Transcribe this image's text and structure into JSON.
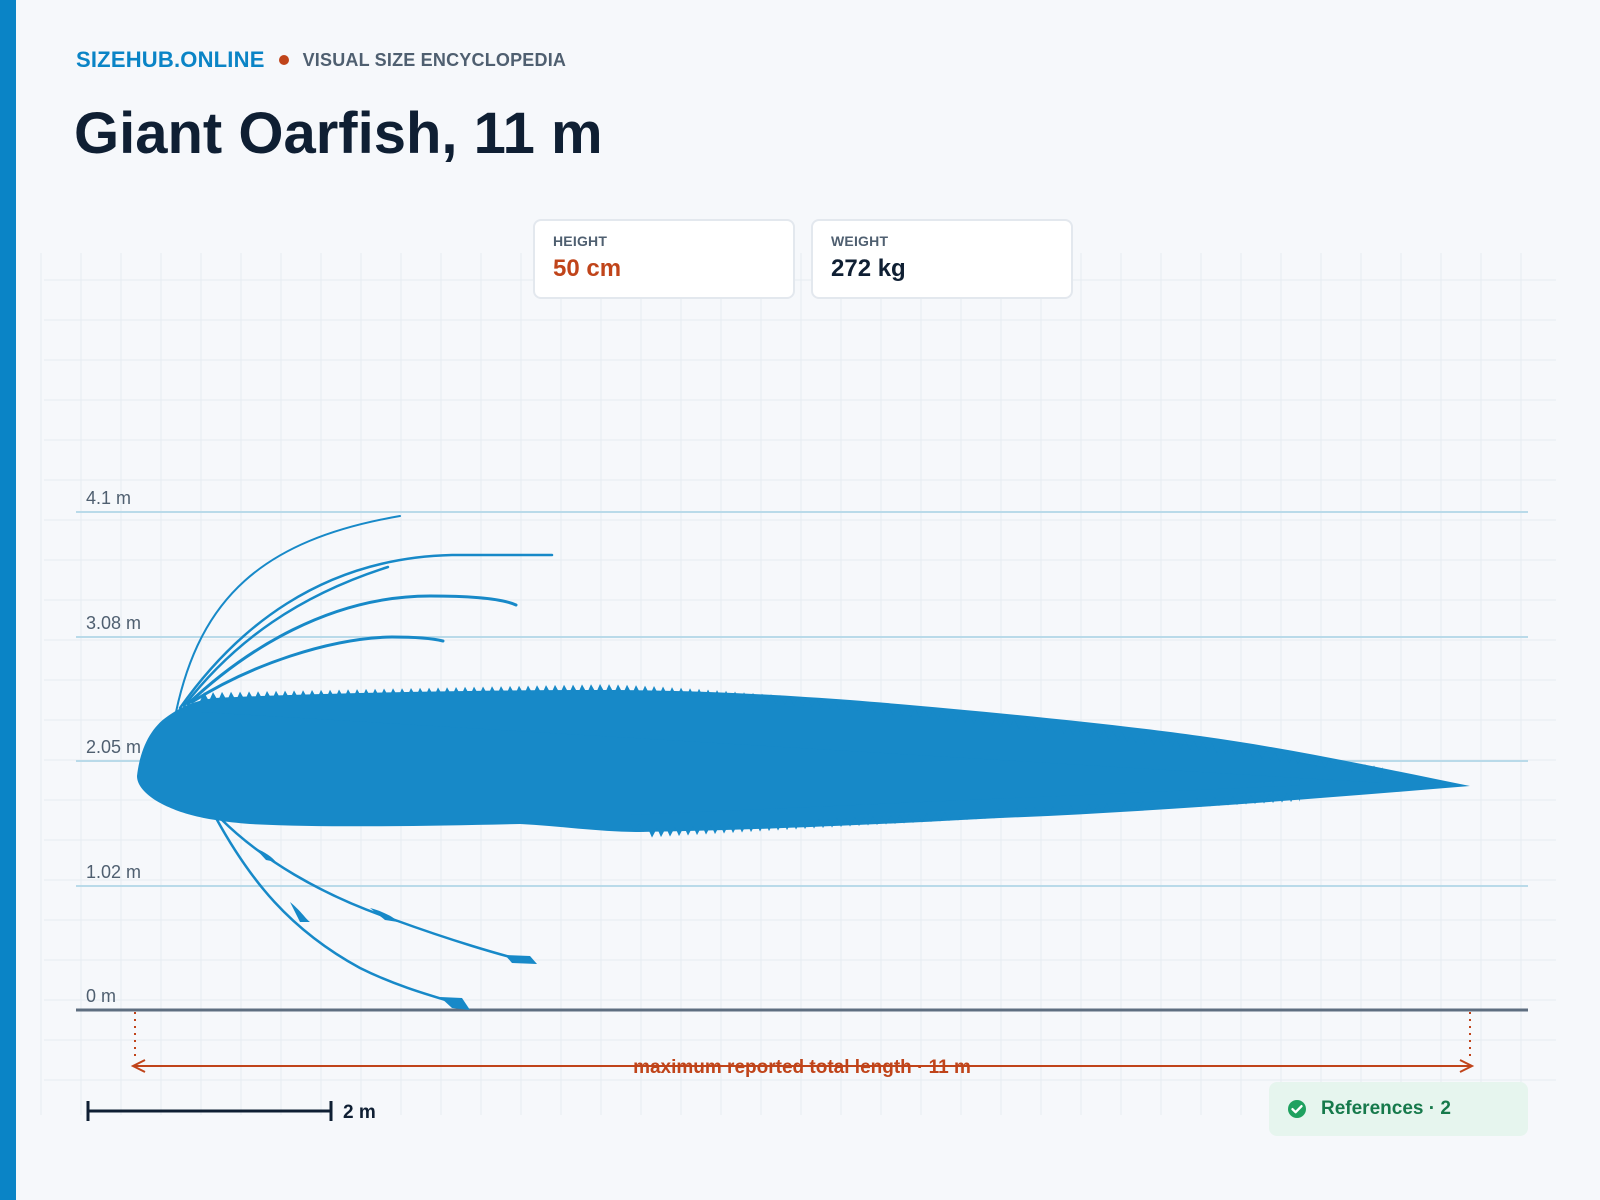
{
  "header": {
    "brand": "SIZEHUB.ONLINE",
    "tagline": "VISUAL SIZE ENCYCLOPEDIA",
    "title": "Giant Oarfish, 11 m"
  },
  "stats": {
    "height_label": "HEIGHT",
    "height_value": "50 cm",
    "weight_label": "WEIGHT",
    "weight_value": "272 kg"
  },
  "chart": {
    "y_labels": [
      "4.1 m",
      "3.08 m",
      "2.05 m",
      "1.02 m",
      "0 m"
    ],
    "length_annotation": "maximum reported total length · 11 m",
    "scale_bar_label": "2 m",
    "silhouette": "giant-oarfish-silhouette"
  },
  "references": {
    "label": "References · 2",
    "icon": "check-circle-icon"
  },
  "colors": {
    "brand": "#0a84c6",
    "silhouette": "#1789c8",
    "accent": "#c0441a",
    "references_text": "#16794b"
  }
}
